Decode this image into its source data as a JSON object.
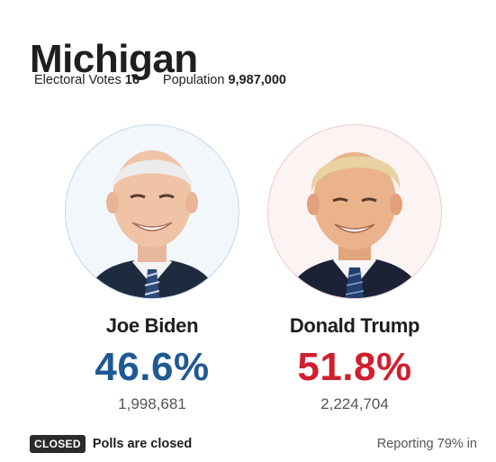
{
  "state": {
    "name": "Michigan"
  },
  "meta": {
    "electoral_votes_label": "Electoral Votes",
    "electoral_votes_value": "16",
    "population_label": "Population",
    "population_value": "9,987,000"
  },
  "candidates": [
    {
      "name": "Joe Biden",
      "percent": "46.6%",
      "votes": "1,998,681",
      "color": "#1f5993",
      "icon": "candidate-portrait-photo"
    },
    {
      "name": "Donald Trump",
      "percent": "51.8%",
      "votes": "2,224,704",
      "color": "#cf1f2e",
      "icon": "candidate-portrait-photo"
    }
  ],
  "status": {
    "badge": "CLOSED",
    "text": "Polls are closed",
    "reporting": "Reporting 79% in"
  },
  "colors": {
    "dem": "#1f5993",
    "rep": "#cf1f2e",
    "badge_bg": "#2b2b2b"
  }
}
